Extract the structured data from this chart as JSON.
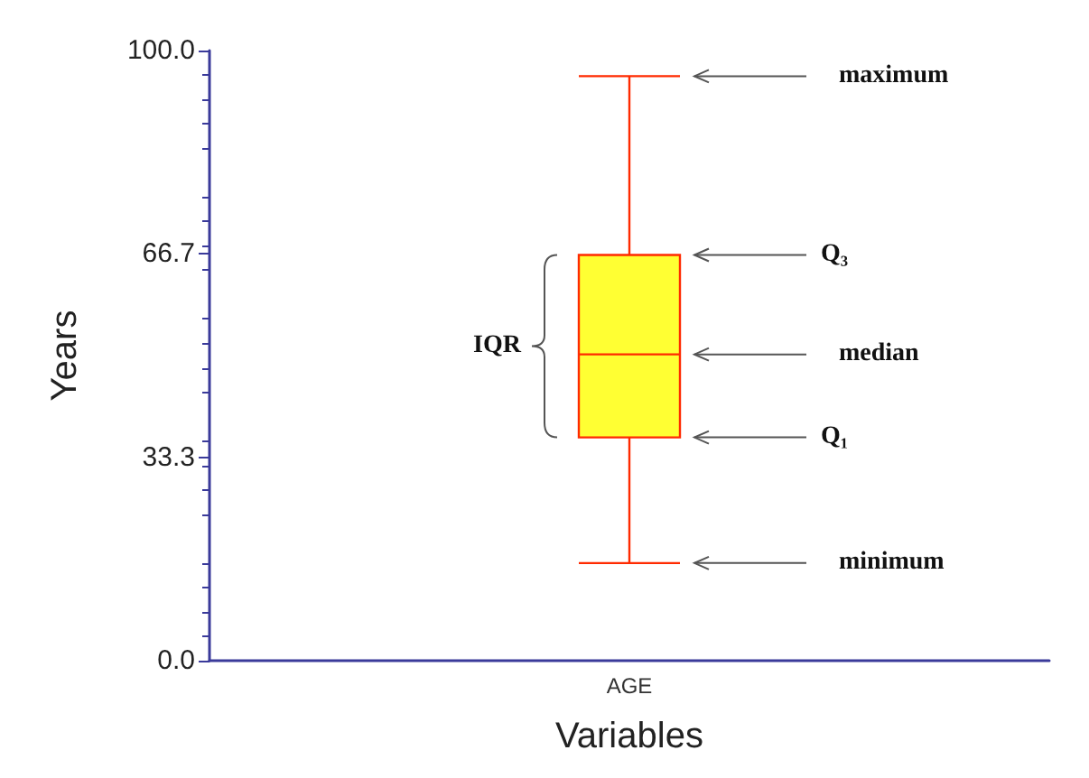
{
  "chart_data": {
    "type": "box",
    "xlabel": "Variables",
    "ylabel": "Years",
    "categories": [
      "AGE"
    ],
    "boxes": [
      {
        "low": 16,
        "q1": 36.6,
        "median": 50.2,
        "q3": 66.5,
        "high": 95.8
      }
    ],
    "color": "#ffff33",
    "ylim": [
      0,
      100
    ],
    "yticks": [
      {
        "value": 0,
        "label": "0.0"
      },
      33.3,
      66.7,
      {
        "value": 100,
        "label": "100.0"
      }
    ],
    "grid": false,
    "annotations": [
      "maximum",
      "Q₃",
      "median",
      "Q₁",
      "minimum",
      "IQR"
    ]
  }
}
